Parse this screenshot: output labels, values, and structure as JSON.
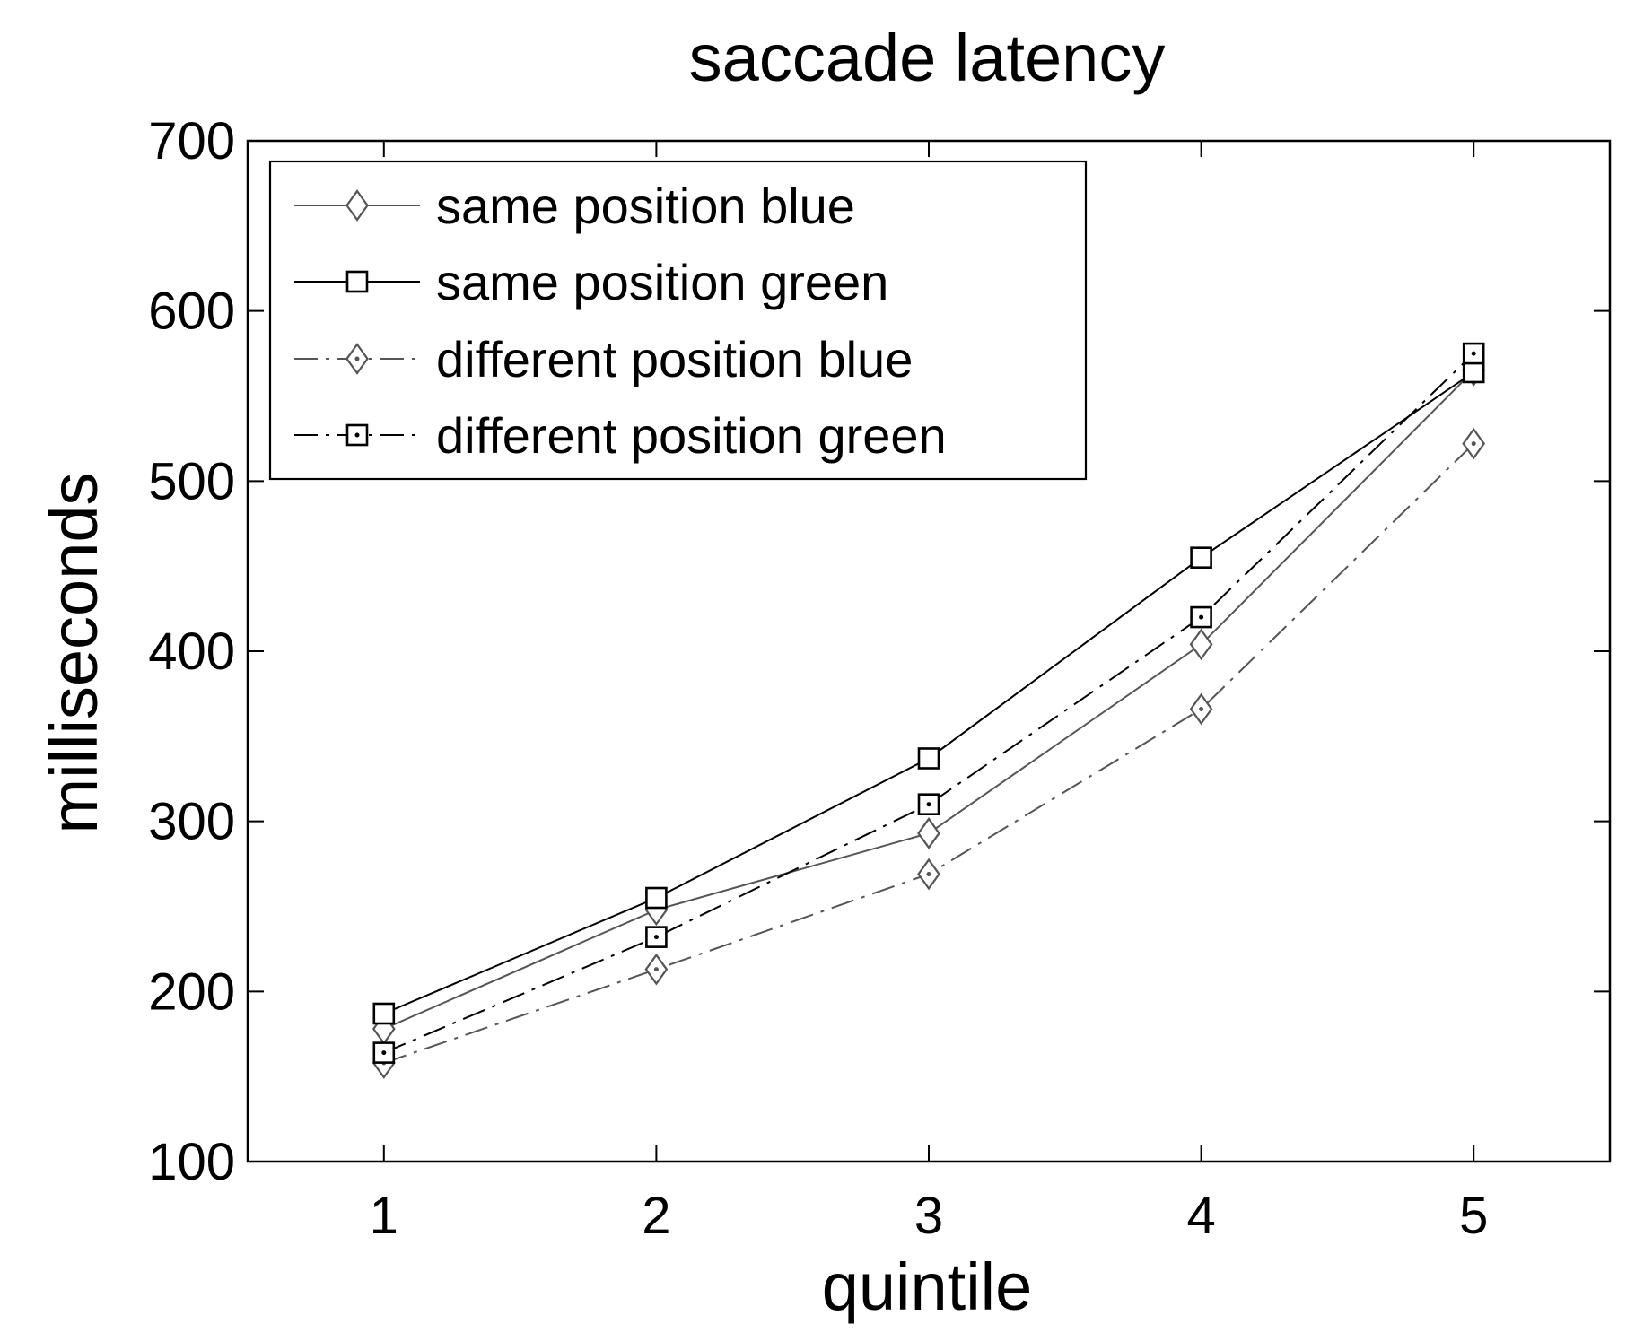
{
  "chart_data": {
    "type": "line",
    "title": "saccade latency",
    "xlabel": "quintile",
    "ylabel": "milliseconds",
    "x": [
      1,
      2,
      3,
      4,
      5
    ],
    "xlim": [
      0.5,
      5.5
    ],
    "ylim": [
      100,
      700
    ],
    "xticks": [
      1,
      2,
      3,
      4,
      5
    ],
    "yticks": [
      100,
      200,
      300,
      400,
      500,
      600,
      700
    ],
    "grid": false,
    "legend_position": "top-left",
    "series": [
      {
        "name": "same position blue",
        "values": [
          178,
          248,
          293,
          404,
          565
        ],
        "line": "solid",
        "marker": "diamond",
        "color": "#555555"
      },
      {
        "name": "same position green",
        "values": [
          187,
          255,
          337,
          455,
          564
        ],
        "line": "solid",
        "marker": "square",
        "color": "#000000"
      },
      {
        "name": "different position blue",
        "values": [
          158,
          213,
          269,
          366,
          522
        ],
        "line": "dashdot",
        "marker": "diamond",
        "color": "#555555"
      },
      {
        "name": "different position green",
        "values": [
          164,
          232,
          310,
          420,
          575
        ],
        "line": "dashdot",
        "marker": "square",
        "color": "#000000"
      }
    ]
  }
}
